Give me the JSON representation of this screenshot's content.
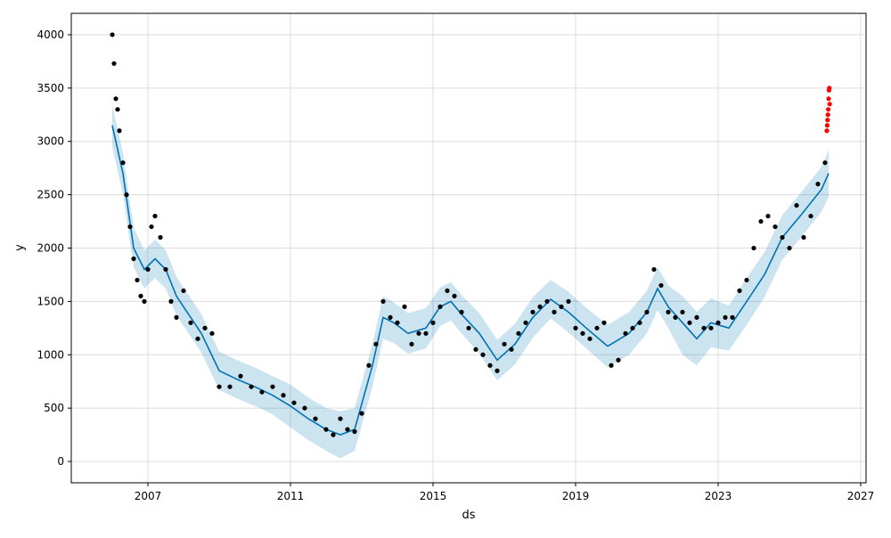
{
  "chart_data": {
    "type": "scatter",
    "title": "",
    "xlabel": "ds",
    "ylabel": "y",
    "xlim": [
      2004.85,
      2027.15
    ],
    "ylim": [
      -200,
      4200
    ],
    "x_ticks": [
      2007,
      2011,
      2015,
      2019,
      2023,
      2027
    ],
    "y_ticks": [
      0,
      500,
      1000,
      1500,
      2000,
      2500,
      3000,
      3500,
      4000
    ],
    "grid": true,
    "legend": "none",
    "colors": {
      "observed": "#000000",
      "forecast_line": "#0072B2",
      "uncertainty_band": "#0072B2",
      "anomaly": "#ff0000"
    },
    "series": [
      {
        "role": "forecast",
        "x": [
          2006.0,
          2006.3,
          2006.6,
          2006.9,
          2007.2,
          2007.5,
          2007.8,
          2008.1,
          2008.5,
          2009.0,
          2009.5,
          2010.0,
          2010.5,
          2011.0,
          2011.5,
          2012.0,
          2012.4,
          2012.8,
          2013.3,
          2013.6,
          2013.9,
          2014.3,
          2014.8,
          2015.2,
          2015.5,
          2015.8,
          2016.3,
          2016.8,
          2017.3,
          2017.8,
          2018.3,
          2018.8,
          2019.3,
          2019.9,
          2020.5,
          2021.0,
          2021.3,
          2021.6,
          2022.0,
          2022.4,
          2022.8,
          2023.3,
          2023.8,
          2024.3,
          2024.8,
          2025.3,
          2025.9,
          2026.1
        ],
        "y": [
          3150,
          2700,
          2000,
          1800,
          1900,
          1800,
          1550,
          1400,
          1200,
          850,
          770,
          700,
          620,
          520,
          400,
          300,
          250,
          300,
          900,
          1350,
          1300,
          1200,
          1250,
          1450,
          1500,
          1380,
          1200,
          950,
          1100,
          1350,
          1520,
          1400,
          1250,
          1080,
          1200,
          1400,
          1620,
          1450,
          1300,
          1150,
          1300,
          1250,
          1500,
          1750,
          2100,
          2300,
          2550,
          2700
        ],
        "lower": [
          2950,
          2500,
          1820,
          1620,
          1720,
          1620,
          1370,
          1220,
          1020,
          670,
          590,
          520,
          440,
          320,
          200,
          100,
          30,
          100,
          700,
          1150,
          1110,
          1010,
          1060,
          1270,
          1320,
          1200,
          1010,
          760,
          910,
          1160,
          1340,
          1210,
          1060,
          880,
          1000,
          1200,
          1420,
          1250,
          1000,
          900,
          1070,
          1040,
          1280,
          1540,
          1890,
          2090,
          2340,
          2480
        ],
        "upper": [
          3340,
          2890,
          2190,
          1980,
          2080,
          1980,
          1730,
          1580,
          1380,
          1030,
          950,
          880,
          800,
          720,
          600,
          500,
          470,
          500,
          1100,
          1550,
          1490,
          1390,
          1440,
          1630,
          1680,
          1560,
          1390,
          1140,
          1290,
          1540,
          1700,
          1590,
          1440,
          1280,
          1400,
          1600,
          1820,
          1650,
          1550,
          1400,
          1530,
          1460,
          1720,
          1960,
          2310,
          2510,
          2760,
          2920
        ]
      },
      {
        "role": "observed",
        "x": [
          2006.0,
          2006.05,
          2006.1,
          2006.15,
          2006.2,
          2006.3,
          2006.4,
          2006.5,
          2006.6,
          2006.7,
          2006.8,
          2006.9,
          2007.0,
          2007.1,
          2007.2,
          2007.35,
          2007.5,
          2007.65,
          2007.8,
          2008.0,
          2008.2,
          2008.4,
          2008.6,
          2008.8,
          2009.0,
          2009.3,
          2009.6,
          2009.9,
          2010.2,
          2010.5,
          2010.8,
          2011.1,
          2011.4,
          2011.7,
          2012.0,
          2012.2,
          2012.4,
          2012.6,
          2012.8,
          2013.0,
          2013.2,
          2013.4,
          2013.6,
          2013.8,
          2014.0,
          2014.2,
          2014.4,
          2014.6,
          2014.8,
          2015.0,
          2015.2,
          2015.4,
          2015.6,
          2015.8,
          2016.0,
          2016.2,
          2016.4,
          2016.6,
          2016.8,
          2017.0,
          2017.2,
          2017.4,
          2017.6,
          2017.8,
          2018.0,
          2018.2,
          2018.4,
          2018.6,
          2018.8,
          2019.0,
          2019.2,
          2019.4,
          2019.6,
          2019.8,
          2020.0,
          2020.2,
          2020.4,
          2020.6,
          2020.8,
          2021.0,
          2021.2,
          2021.4,
          2021.6,
          2021.8,
          2022.0,
          2022.2,
          2022.4,
          2022.6,
          2022.8,
          2023.0,
          2023.2,
          2023.4,
          2023.6,
          2023.8,
          2024.0,
          2024.2,
          2024.4,
          2024.6,
          2024.8,
          2025.0,
          2025.2,
          2025.4,
          2025.6,
          2025.8,
          2026.0
        ],
        "y": [
          4000,
          3730,
          3400,
          3300,
          3100,
          2800,
          2500,
          2200,
          1900,
          1700,
          1550,
          1500,
          1800,
          2200,
          2300,
          2100,
          1800,
          1500,
          1350,
          1600,
          1300,
          1150,
          1250,
          1200,
          700,
          700,
          800,
          700,
          650,
          700,
          620,
          550,
          500,
          400,
          300,
          250,
          400,
          300,
          280,
          450,
          900,
          1100,
          1500,
          1350,
          1300,
          1450,
          1100,
          1200,
          1200,
          1300,
          1450,
          1600,
          1550,
          1400,
          1250,
          1050,
          1000,
          900,
          850,
          1100,
          1050,
          1200,
          1300,
          1400,
          1450,
          1500,
          1400,
          1450,
          1500,
          1250,
          1200,
          1150,
          1250,
          1300,
          900,
          950,
          1200,
          1250,
          1300,
          1400,
          1800,
          1650,
          1400,
          1350,
          1400,
          1300,
          1350,
          1250,
          1250,
          1300,
          1350,
          1350,
          1600,
          1700,
          2000,
          2250,
          2300,
          2200,
          2100,
          2000,
          2400,
          2100,
          2300,
          2600,
          2800
        ]
      },
      {
        "role": "anomaly",
        "x": [
          2026.05,
          2026.06,
          2026.07,
          2026.08,
          2026.09,
          2026.1,
          2026.11,
          2026.12,
          2026.13
        ],
        "y": [
          3100,
          3150,
          3200,
          3250,
          3300,
          3400,
          3480,
          3500,
          3350
        ]
      }
    ]
  }
}
